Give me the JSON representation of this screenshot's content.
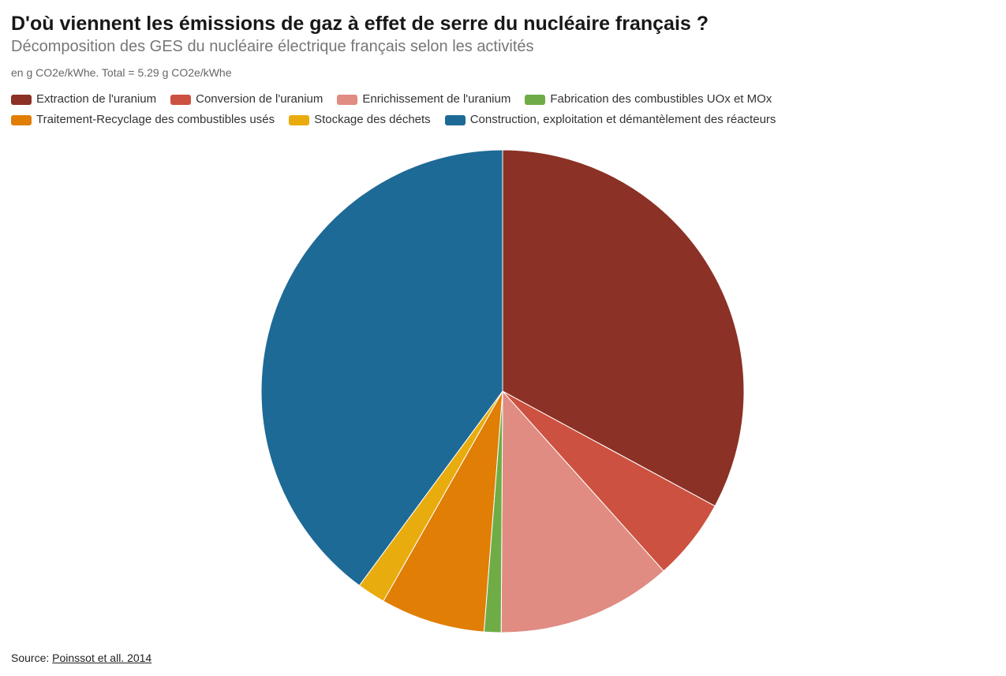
{
  "header": {
    "title": "D'où viennent les émissions de gaz à effet de serre du nucléaire français ?",
    "subtitle": "Décomposition des GES du nucléaire électrique français selon les activités",
    "note": "en g CO2e/kWhe. Total = 5.29 g CO2e/kWhe"
  },
  "chart_data": {
    "type": "pie",
    "title": "D'où viennent les émissions de gaz à effet de serre du nucléaire français ?",
    "subtitle": "Décomposition des GES du nucléaire électrique français selon les activités",
    "unit_note": "en g CO2e/kWhe. Total = 5.29 g CO2e/kWhe",
    "total": 5.29,
    "legend_position": "top-left",
    "start_angle": "12 o'clock",
    "direction": "clockwise",
    "slices": [
      {
        "label": "Extraction de l'uranium",
        "value": 1.74,
        "color": "#8b3126"
      },
      {
        "label": "Conversion de l'uranium",
        "value": 0.29,
        "color": "#cd5140"
      },
      {
        "label": "Enrichissement de l'uranium",
        "value": 0.62,
        "color": "#e08c83"
      },
      {
        "label": "Fabrication des combustibles UOx et MOx",
        "value": 0.06,
        "color": "#6fac46"
      },
      {
        "label": "Traitement-Recyclage des combustibles usés",
        "value": 0.37,
        "color": "#e07e06"
      },
      {
        "label": "Stockage des déchets",
        "value": 0.1,
        "color": "#e9ac0e"
      },
      {
        "label": "Construction, exploitation et démantèlement des réacteurs",
        "value": 2.11,
        "color": "#1e6a96"
      }
    ]
  },
  "footer": {
    "source_prefix": "Source: ",
    "source_link": "Poinssot et all. 2014"
  }
}
